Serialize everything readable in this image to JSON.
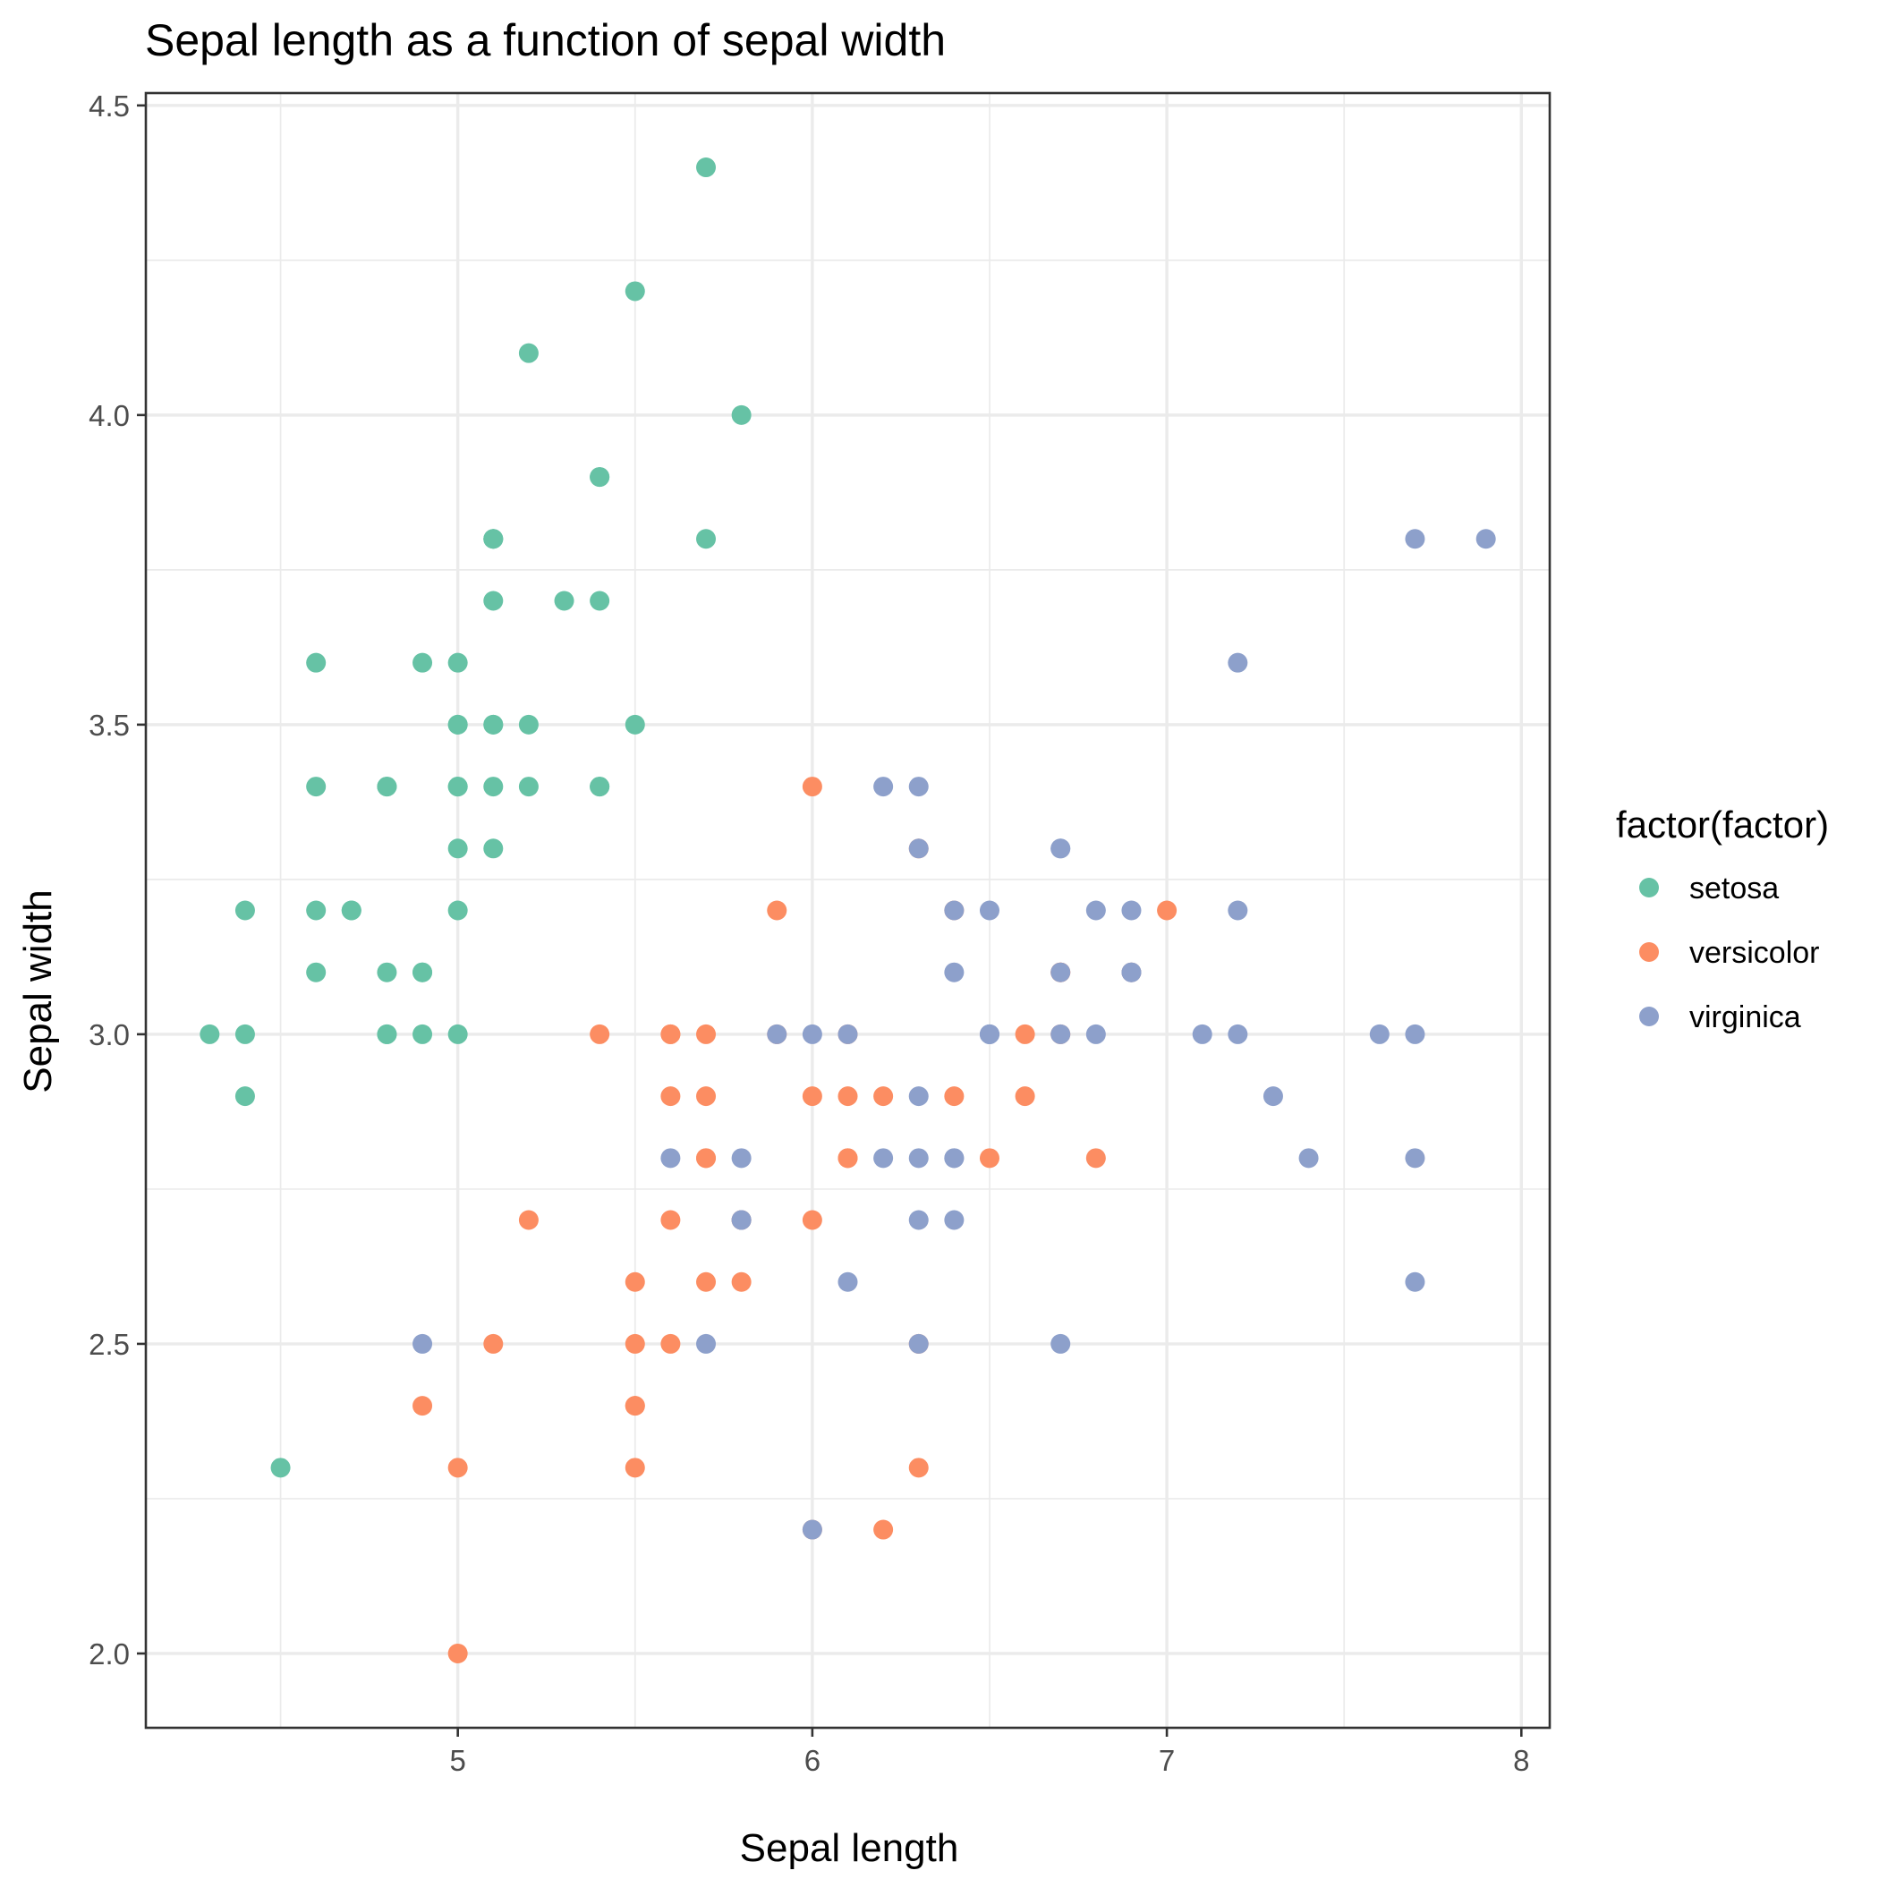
{
  "chart_data": {
    "type": "scatter",
    "title": "Sepal length as a function of sepal width",
    "xlabel": "Sepal length",
    "ylabel": "Sepal width",
    "xlim": [
      4.12,
      8.08
    ],
    "ylim": [
      1.88,
      4.52
    ],
    "x_ticks": [
      5,
      6,
      7,
      8
    ],
    "x_tick_labels": [
      "5",
      "6",
      "7",
      "8"
    ],
    "y_ticks": [
      2.0,
      2.5,
      3.0,
      3.5,
      4.0,
      4.5
    ],
    "y_tick_labels": [
      "2.0",
      "2.5",
      "3.0",
      "3.5",
      "4.0",
      "4.5"
    ],
    "x_minor_ticks": [
      4.5,
      5.5,
      6.5,
      7.5
    ],
    "y_minor_ticks": [
      2.25,
      2.75,
      3.25,
      3.75,
      4.25
    ],
    "grid": true,
    "legend": {
      "title": "factor(factor)",
      "placement": "right"
    },
    "series": [
      {
        "name": "setosa",
        "color": "#66C2A5",
        "points": [
          [
            5.1,
            3.5
          ],
          [
            4.9,
            3.0
          ],
          [
            4.7,
            3.2
          ],
          [
            4.6,
            3.1
          ],
          [
            5.0,
            3.6
          ],
          [
            5.4,
            3.9
          ],
          [
            4.6,
            3.4
          ],
          [
            5.0,
            3.4
          ],
          [
            4.4,
            2.9
          ],
          [
            4.9,
            3.1
          ],
          [
            5.4,
            3.7
          ],
          [
            4.8,
            3.4
          ],
          [
            4.8,
            3.0
          ],
          [
            4.3,
            3.0
          ],
          [
            5.8,
            4.0
          ],
          [
            5.7,
            4.4
          ],
          [
            5.4,
            3.9
          ],
          [
            5.1,
            3.5
          ],
          [
            5.7,
            3.8
          ],
          [
            5.1,
            3.8
          ],
          [
            5.4,
            3.4
          ],
          [
            5.1,
            3.7
          ],
          [
            4.6,
            3.6
          ],
          [
            5.1,
            3.3
          ],
          [
            4.8,
            3.4
          ],
          [
            5.0,
            3.0
          ],
          [
            5.0,
            3.4
          ],
          [
            5.2,
            3.5
          ],
          [
            5.2,
            3.4
          ],
          [
            4.7,
            3.2
          ],
          [
            4.8,
            3.1
          ],
          [
            5.4,
            3.4
          ],
          [
            5.2,
            4.1
          ],
          [
            5.5,
            4.2
          ],
          [
            4.9,
            3.1
          ],
          [
            5.0,
            3.2
          ],
          [
            5.5,
            3.5
          ],
          [
            4.9,
            3.6
          ],
          [
            4.4,
            3.0
          ],
          [
            5.1,
            3.4
          ],
          [
            5.0,
            3.5
          ],
          [
            4.5,
            2.3
          ],
          [
            4.4,
            3.2
          ],
          [
            5.0,
            3.5
          ],
          [
            5.1,
            3.8
          ],
          [
            4.8,
            3.0
          ],
          [
            5.1,
            3.8
          ],
          [
            4.6,
            3.2
          ],
          [
            5.3,
            3.7
          ],
          [
            5.0,
            3.3
          ]
        ]
      },
      {
        "name": "versicolor",
        "color": "#FC8D62",
        "points": [
          [
            7.0,
            3.2
          ],
          [
            6.4,
            3.2
          ],
          [
            6.9,
            3.1
          ],
          [
            5.5,
            2.3
          ],
          [
            6.5,
            2.8
          ],
          [
            5.7,
            2.8
          ],
          [
            6.3,
            3.3
          ],
          [
            4.9,
            2.4
          ],
          [
            6.6,
            2.9
          ],
          [
            5.2,
            2.7
          ],
          [
            5.0,
            2.0
          ],
          [
            5.9,
            3.0
          ],
          [
            6.0,
            2.2
          ],
          [
            6.1,
            2.9
          ],
          [
            5.6,
            2.9
          ],
          [
            6.7,
            3.1
          ],
          [
            5.6,
            3.0
          ],
          [
            5.8,
            2.7
          ],
          [
            6.2,
            2.2
          ],
          [
            5.6,
            2.5
          ],
          [
            5.9,
            3.2
          ],
          [
            6.1,
            2.8
          ],
          [
            6.3,
            2.5
          ],
          [
            6.1,
            2.8
          ],
          [
            6.4,
            2.9
          ],
          [
            6.6,
            3.0
          ],
          [
            6.8,
            2.8
          ],
          [
            6.7,
            3.0
          ],
          [
            6.0,
            2.9
          ],
          [
            5.7,
            2.6
          ],
          [
            5.5,
            2.4
          ],
          [
            5.5,
            2.4
          ],
          [
            5.8,
            2.7
          ],
          [
            6.0,
            2.7
          ],
          [
            5.4,
            3.0
          ],
          [
            6.0,
            3.4
          ],
          [
            6.7,
            3.1
          ],
          [
            6.3,
            2.3
          ],
          [
            5.6,
            3.0
          ],
          [
            5.5,
            2.5
          ],
          [
            5.5,
            2.6
          ],
          [
            6.1,
            3.0
          ],
          [
            5.8,
            2.6
          ],
          [
            5.0,
            2.3
          ],
          [
            5.6,
            2.7
          ],
          [
            5.7,
            3.0
          ],
          [
            5.7,
            2.9
          ],
          [
            6.2,
            2.9
          ],
          [
            5.1,
            2.5
          ],
          [
            5.7,
            2.8
          ]
        ]
      },
      {
        "name": "virginica",
        "color": "#8DA0CB",
        "points": [
          [
            6.3,
            3.3
          ],
          [
            5.8,
            2.7
          ],
          [
            7.1,
            3.0
          ],
          [
            6.3,
            2.9
          ],
          [
            6.5,
            3.0
          ],
          [
            7.6,
            3.0
          ],
          [
            4.9,
            2.5
          ],
          [
            7.3,
            2.9
          ],
          [
            6.7,
            2.5
          ],
          [
            7.2,
            3.6
          ],
          [
            6.5,
            3.2
          ],
          [
            6.4,
            2.7
          ],
          [
            6.8,
            3.0
          ],
          [
            5.7,
            2.5
          ],
          [
            5.8,
            2.8
          ],
          [
            6.4,
            3.2
          ],
          [
            6.5,
            3.0
          ],
          [
            7.7,
            3.8
          ],
          [
            7.7,
            2.6
          ],
          [
            6.0,
            2.2
          ],
          [
            6.9,
            3.2
          ],
          [
            5.6,
            2.8
          ],
          [
            7.7,
            2.8
          ],
          [
            6.3,
            2.7
          ],
          [
            6.7,
            3.3
          ],
          [
            7.2,
            3.2
          ],
          [
            6.2,
            2.8
          ],
          [
            6.1,
            3.0
          ],
          [
            6.4,
            2.8
          ],
          [
            7.2,
            3.0
          ],
          [
            7.4,
            2.8
          ],
          [
            7.9,
            3.8
          ],
          [
            6.4,
            2.8
          ],
          [
            6.3,
            2.8
          ],
          [
            6.1,
            2.6
          ],
          [
            7.7,
            3.0
          ],
          [
            6.3,
            3.4
          ],
          [
            6.4,
            3.1
          ],
          [
            6.0,
            3.0
          ],
          [
            6.9,
            3.1
          ],
          [
            6.7,
            3.1
          ],
          [
            6.9,
            3.1
          ],
          [
            5.8,
            2.7
          ],
          [
            6.8,
            3.2
          ],
          [
            6.7,
            3.3
          ],
          [
            6.7,
            3.0
          ],
          [
            6.3,
            2.5
          ],
          [
            6.5,
            3.0
          ],
          [
            6.2,
            3.4
          ],
          [
            5.9,
            3.0
          ]
        ]
      }
    ]
  }
}
